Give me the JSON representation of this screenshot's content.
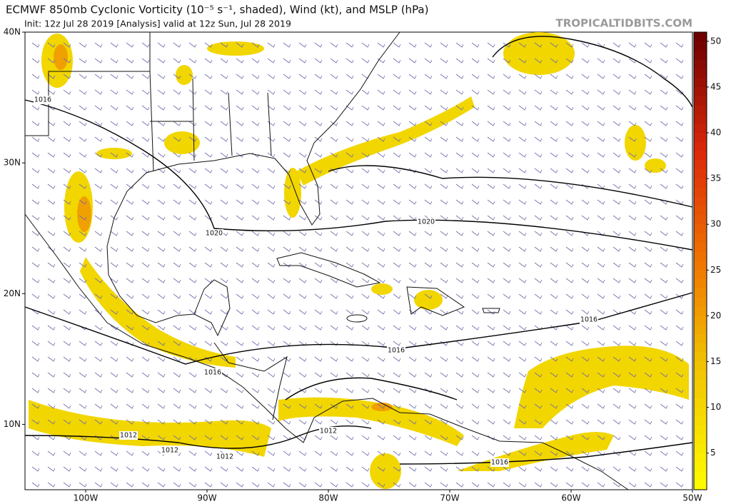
{
  "header": {
    "title": "ECMWF 850mb Cyclonic Vorticity (10⁻⁵ s⁻¹, shaded), Wind (kt), and MSLP (hPa)",
    "init": "Init: 12z Jul 28 2019   [Analysis]   valid at 12z Sun, Jul 28 2019",
    "site": "TROPICALTIDBITS.COM"
  },
  "map": {
    "lonlim": [
      -105,
      -50
    ],
    "latlim": [
      5,
      40
    ],
    "lonticks": [
      {
        "value": -100,
        "label": "100W"
      },
      {
        "value": -90,
        "label": "90W"
      },
      {
        "value": -80,
        "label": "80W"
      },
      {
        "value": -70,
        "label": "70W"
      },
      {
        "value": -60,
        "label": "60W"
      },
      {
        "value": -50,
        "label": "50W"
      }
    ],
    "latticks": [
      {
        "value": 40,
        "label": "40N"
      },
      {
        "value": 30,
        "label": "30N"
      },
      {
        "value": 20,
        "label": "20N"
      },
      {
        "value": 10,
        "label": "10N"
      }
    ],
    "contour_labels": [
      "1016",
      "1020",
      "1020",
      "1016",
      "1016",
      "1016",
      "1012",
      "1012",
      "1012",
      "1012",
      "1016"
    ]
  },
  "colorbar": {
    "lim": [
      1,
      51
    ],
    "ticks": [
      5,
      10,
      15,
      20,
      25,
      30,
      35,
      40,
      45,
      50
    ]
  }
}
